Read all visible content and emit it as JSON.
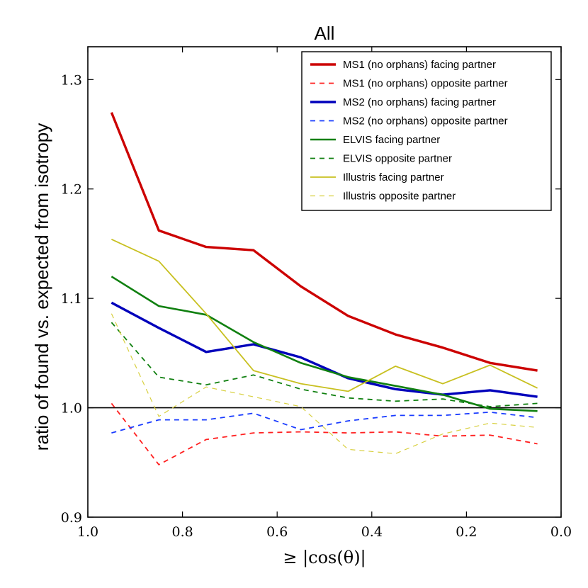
{
  "chart_data": {
    "type": "line",
    "title": "All",
    "xlabel": "≥ |cos(θ)|",
    "ylabel": "ratio of found vs. expected from isotropy",
    "xlim": [
      1.0,
      0.0
    ],
    "ylim": [
      0.9,
      1.33
    ],
    "xticks": [
      1.0,
      0.8,
      0.6,
      0.4,
      0.2,
      0.0
    ],
    "xtick_labels": [
      "1.0",
      "0.8",
      "0.6",
      "0.4",
      "0.2",
      "0.0"
    ],
    "yticks": [
      0.9,
      1.0,
      1.1,
      1.2,
      1.3
    ],
    "ytick_labels": [
      "0.9",
      "1.0",
      "1.1",
      "1.2",
      "1.3"
    ],
    "reference_line": 1.0,
    "legend_position": "top-right",
    "x": [
      0.95,
      0.85,
      0.75,
      0.65,
      0.55,
      0.45,
      0.35,
      0.25,
      0.15,
      0.05
    ],
    "series": [
      {
        "name": "MS1 (no orphans) facing partner",
        "color": "#cc0000",
        "style": "solid",
        "weight": "thick",
        "values": [
          1.27,
          1.162,
          1.147,
          1.144,
          1.111,
          1.084,
          1.067,
          1.055,
          1.041,
          1.034
        ]
      },
      {
        "name": "MS1 (no orphans) opposite partner",
        "color": "#ff2020",
        "style": "dashed",
        "weight": "normal",
        "values": [
          1.004,
          0.948,
          0.971,
          0.977,
          0.978,
          0.977,
          0.978,
          0.974,
          0.975,
          0.967
        ]
      },
      {
        "name": "MS2 (no orphans) facing partner",
        "color": "#0000bb",
        "style": "solid",
        "weight": "thick",
        "values": [
          1.096,
          1.073,
          1.051,
          1.058,
          1.046,
          1.027,
          1.017,
          1.012,
          1.016,
          1.01
        ]
      },
      {
        "name": "MS2 (no orphans) opposite partner",
        "color": "#1a3cff",
        "style": "dashed",
        "weight": "normal",
        "values": [
          0.977,
          0.989,
          0.989,
          0.995,
          0.98,
          0.988,
          0.993,
          0.993,
          0.996,
          0.991
        ]
      },
      {
        "name": "ELVIS facing partner",
        "color": "#108010",
        "style": "solid",
        "weight": "medium",
        "values": [
          1.12,
          1.093,
          1.085,
          1.06,
          1.041,
          1.028,
          1.02,
          1.012,
          0.999,
          0.997
        ]
      },
      {
        "name": "ELVIS opposite partner",
        "color": "#108010",
        "style": "dashed",
        "weight": "normal",
        "values": [
          1.078,
          1.028,
          1.021,
          1.03,
          1.017,
          1.009,
          1.006,
          1.008,
          1.001,
          1.004
        ]
      },
      {
        "name": "Illustris facing partner",
        "color": "#c8c020",
        "style": "solid",
        "weight": "normal",
        "values": [
          1.154,
          1.134,
          1.086,
          1.034,
          1.022,
          1.015,
          1.038,
          1.022,
          1.039,
          1.018
        ]
      },
      {
        "name": "Illustris opposite partner",
        "color": "#d8d040",
        "style": "dashed",
        "weight": "thin",
        "values": [
          1.086,
          0.992,
          1.019,
          1.01,
          1.001,
          0.962,
          0.958,
          0.976,
          0.986,
          0.982
        ]
      }
    ]
  }
}
